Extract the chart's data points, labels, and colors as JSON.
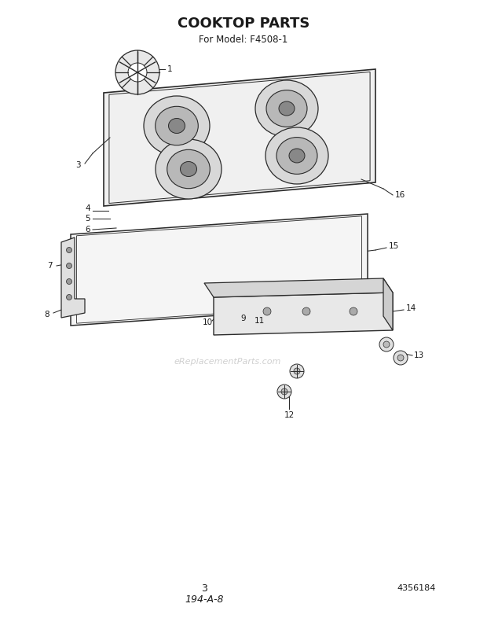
{
  "title": "COOKTOP PARTS",
  "subtitle": "For Model: F4508-1",
  "title_fontsize": 13,
  "subtitle_fontsize": 8.5,
  "bg_color": "#ffffff",
  "line_color": "#2a2a2a",
  "text_color": "#1a1a1a",
  "watermark": "eReplacementParts.com",
  "page_number": "3",
  "part_number": "4356184",
  "diagram_code": "194-A-8"
}
